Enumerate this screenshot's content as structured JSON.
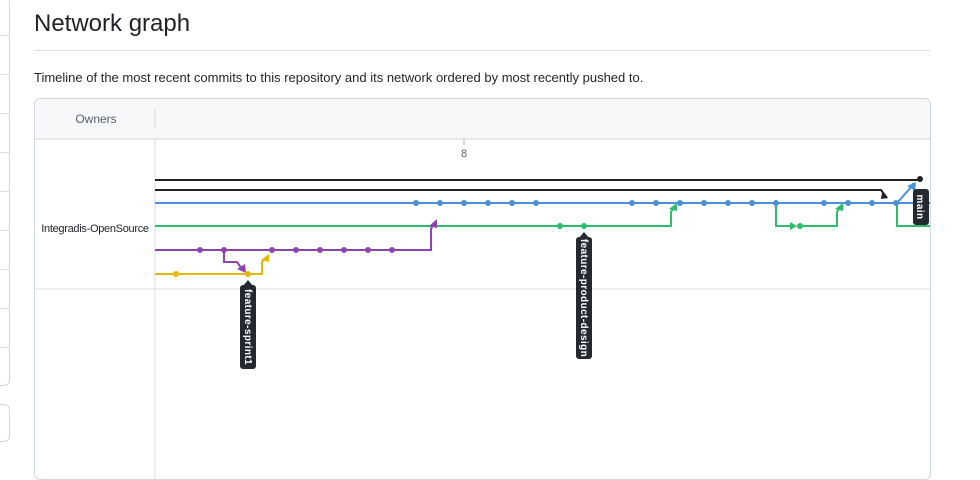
{
  "page": {
    "title": "Network graph",
    "description": "Timeline of the most recent commits to this repository and its network ordered by most recently pushed to."
  },
  "graph": {
    "owners_header": "Owners",
    "owners": [
      {
        "name": "Integradis-OpenSource"
      }
    ],
    "date_labels": [
      {
        "label": "8"
      }
    ],
    "branches": [
      {
        "name": "main"
      },
      {
        "name": "feature-product-design"
      },
      {
        "name": "feature-sprint1"
      }
    ],
    "colors": {
      "main": "#1f2328",
      "blue": "#4a90d9",
      "green": "#2dbb6c",
      "purple": "#8e44ad",
      "yellow": "#e5b80b",
      "label_bg": "#24292f"
    }
  }
}
